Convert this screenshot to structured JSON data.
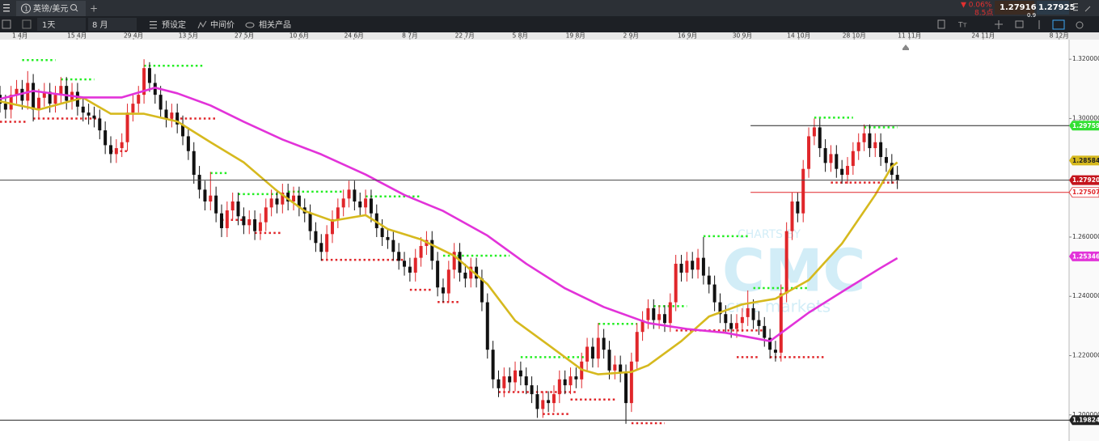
{
  "toolbar": {
    "tab": "英镑/美元",
    "timeframe": "1天",
    "period": "8 月",
    "presets": "预设定",
    "price_mode": "中间价",
    "related": "相关产品",
    "change": "▼ 0.06%",
    "points": "8.5点",
    "bid": "1.27916",
    "ask": "1.27925",
    "spread": "0.9",
    "font_icon": "Tт"
  },
  "watermark": {
    "line1": "CHARTS BY",
    "line2": "CMC",
    "line3": "cmc markets"
  },
  "chart_data": {
    "type": "candlestick",
    "up_color": "#e0262a",
    "down_color": "#111111",
    "grid": false,
    "xlim": [
      0,
      193
    ],
    "xticks": [
      {
        "value": 3.6,
        "label": "1 4月"
      },
      {
        "value": 13.9,
        "label": "15 4月"
      },
      {
        "value": 24.1,
        "label": "29 4月"
      },
      {
        "value": 34,
        "label": "13 5月"
      },
      {
        "value": 44.1,
        "label": "27 5月"
      },
      {
        "value": 54,
        "label": "10 6月"
      },
      {
        "value": 63.9,
        "label": "24 6月"
      },
      {
        "value": 74,
        "label": "8 7月"
      },
      {
        "value": 83.9,
        "label": "22 7月"
      },
      {
        "value": 93.9,
        "label": "5 8月"
      },
      {
        "value": 103.9,
        "label": "19 8月"
      },
      {
        "value": 113.9,
        "label": "2 9月"
      },
      {
        "value": 124.1,
        "label": "16 9月"
      },
      {
        "value": 134,
        "label": "30 9月"
      },
      {
        "value": 144.2,
        "label": "14 10月"
      },
      {
        "value": 154.2,
        "label": "28 10月"
      },
      {
        "value": 164.2,
        "label": "11 11月"
      },
      {
        "value": 177.5,
        "label": "24 11月"
      },
      {
        "value": 191.2,
        "label": "8 12月"
      }
    ],
    "ylim": [
      1.1912,
      1.3266
    ],
    "yticks": [
      {
        "value": 1.32,
        "label": "1.320000"
      },
      {
        "value": 1.3,
        "label": "1.300000"
      },
      {
        "value": 1.26,
        "label": "1.260000"
      },
      {
        "value": 1.24,
        "label": "1.240000"
      },
      {
        "value": 1.22,
        "label": "1.220000"
      },
      {
        "value": 1.2,
        "label": "1.200000"
      }
    ],
    "open": [
      1.308,
      1.305,
      1.303,
      1.308,
      1.31,
      1.306,
      1.312,
      1.303,
      1.307,
      1.309,
      1.305,
      1.308,
      1.311,
      1.306,
      1.309,
      1.304,
      1.302,
      1.301,
      1.3,
      1.296,
      1.291,
      1.288,
      1.29,
      1.292,
      1.302,
      1.305,
      1.308,
      1.317,
      1.312,
      1.308,
      1.303,
      1.3,
      1.302,
      1.298,
      1.294,
      1.289,
      1.281,
      1.276,
      1.272,
      1.274,
      1.268,
      1.263,
      1.269,
      1.272,
      1.267,
      1.264,
      1.266,
      1.262,
      1.265,
      1.27,
      1.273,
      1.271,
      1.275,
      1.272,
      1.274,
      1.27,
      1.268,
      1.262,
      1.258,
      1.255,
      1.261,
      1.266,
      1.27,
      1.273,
      1.276,
      1.272,
      1.27,
      1.273,
      1.268,
      1.263,
      1.26,
      1.259,
      1.255,
      1.252,
      1.25,
      1.248,
      1.253,
      1.257,
      1.259,
      1.252,
      1.243,
      1.241,
      1.249,
      1.255,
      1.248,
      1.246,
      1.25,
      1.246,
      1.238,
      1.222,
      1.212,
      1.209,
      1.213,
      1.211,
      1.215,
      1.213,
      1.21,
      1.207,
      1.202,
      1.205,
      1.204,
      1.207,
      1.212,
      1.21,
      1.213,
      1.212,
      1.218,
      1.223,
      1.219,
      1.226,
      1.222,
      1.215,
      1.217,
      1.214,
      1.204,
      1.218,
      1.228,
      1.232,
      1.236,
      1.232,
      1.234,
      1.231,
      1.238,
      1.251,
      1.248,
      1.252,
      1.249,
      1.253,
      1.247,
      1.244,
      1.238,
      1.234,
      1.231,
      1.229,
      1.231,
      1.233,
      1.236,
      1.232,
      1.23,
      1.226,
      1.222,
      1.221,
      1.241,
      1.262,
      1.272,
      1.268,
      1.283,
      1.294,
      1.297,
      1.29,
      1.285,
      1.288,
      1.283,
      1.281,
      1.284,
      1.289,
      1.292,
      1.295,
      1.29,
      1.292,
      1.287,
      1.285,
      1.281
    ],
    "high": [
      1.311,
      1.308,
      1.311,
      1.313,
      1.313,
      1.316,
      1.315,
      1.31,
      1.312,
      1.312,
      1.311,
      1.314,
      1.314,
      1.312,
      1.312,
      1.307,
      1.305,
      1.304,
      1.303,
      1.299,
      1.294,
      1.293,
      1.295,
      1.305,
      1.308,
      1.311,
      1.32,
      1.319,
      1.315,
      1.311,
      1.306,
      1.305,
      1.305,
      1.301,
      1.297,
      1.292,
      1.284,
      1.279,
      1.282,
      1.277,
      1.271,
      1.272,
      1.275,
      1.275,
      1.27,
      1.269,
      1.269,
      1.268,
      1.273,
      1.276,
      1.276,
      1.278,
      1.278,
      1.277,
      1.277,
      1.273,
      1.271,
      1.265,
      1.261,
      1.264,
      1.269,
      1.273,
      1.276,
      1.279,
      1.279,
      1.275,
      1.276,
      1.276,
      1.271,
      1.266,
      1.263,
      1.262,
      1.258,
      1.255,
      1.253,
      1.256,
      1.26,
      1.262,
      1.262,
      1.255,
      1.246,
      1.252,
      1.258,
      1.258,
      1.251,
      1.253,
      1.253,
      1.249,
      1.241,
      1.225,
      1.215,
      1.216,
      1.216,
      1.218,
      1.218,
      1.216,
      1.213,
      1.21,
      1.208,
      1.208,
      1.21,
      1.215,
      1.215,
      1.216,
      1.216,
      1.221,
      1.226,
      1.226,
      1.231,
      1.229,
      1.225,
      1.22,
      1.22,
      1.217,
      1.221,
      1.231,
      1.235,
      1.239,
      1.239,
      1.237,
      1.237,
      1.241,
      1.254,
      1.254,
      1.255,
      1.255,
      1.256,
      1.26,
      1.25,
      1.247,
      1.241,
      1.237,
      1.234,
      1.234,
      1.236,
      1.242,
      1.239,
      1.235,
      1.233,
      1.229,
      1.225,
      1.244,
      1.265,
      1.275,
      1.275,
      1.286,
      1.297,
      1.3,
      1.3,
      1.293,
      1.291,
      1.291,
      1.286,
      1.287,
      1.292,
      1.295,
      1.298,
      1.298,
      1.295,
      1.295,
      1.29,
      1.288,
      1.284
    ],
    "low": [
      1.302,
      1.3,
      1.3,
      1.305,
      1.303,
      1.303,
      1.299,
      1.3,
      1.304,
      1.302,
      1.302,
      1.305,
      1.303,
      1.303,
      1.301,
      1.299,
      1.298,
      1.297,
      1.293,
      1.288,
      1.285,
      1.285,
      1.287,
      1.289,
      1.299,
      1.302,
      1.305,
      1.309,
      1.305,
      1.3,
      1.297,
      1.297,
      1.295,
      1.291,
      1.286,
      1.278,
      1.273,
      1.269,
      1.269,
      1.265,
      1.26,
      1.26,
      1.266,
      1.264,
      1.261,
      1.261,
      1.259,
      1.259,
      1.262,
      1.267,
      1.268,
      1.268,
      1.269,
      1.269,
      1.267,
      1.265,
      1.259,
      1.255,
      1.252,
      1.252,
      1.258,
      1.263,
      1.267,
      1.27,
      1.269,
      1.267,
      1.267,
      1.265,
      1.26,
      1.257,
      1.256,
      1.252,
      1.249,
      1.247,
      1.245,
      1.245,
      1.25,
      1.254,
      1.249,
      1.24,
      1.238,
      1.238,
      1.246,
      1.245,
      1.243,
      1.243,
      1.243,
      1.235,
      1.219,
      1.209,
      1.206,
      1.206,
      1.208,
      1.208,
      1.21,
      1.207,
      1.204,
      1.199,
      1.199,
      1.201,
      1.201,
      1.204,
      1.207,
      1.207,
      1.209,
      1.209,
      1.215,
      1.216,
      1.216,
      1.219,
      1.212,
      1.212,
      1.211,
      1.197,
      1.201,
      1.215,
      1.225,
      1.229,
      1.229,
      1.229,
      1.228,
      1.228,
      1.235,
      1.245,
      1.245,
      1.246,
      1.246,
      1.244,
      1.241,
      1.235,
      1.231,
      1.228,
      1.226,
      1.226,
      1.228,
      1.23,
      1.229,
      1.227,
      1.223,
      1.219,
      1.218,
      1.218,
      1.238,
      1.259,
      1.265,
      1.265,
      1.28,
      1.291,
      1.287,
      1.282,
      1.282,
      1.28,
      1.278,
      1.278,
      1.281,
      1.286,
      1.289,
      1.287,
      1.287,
      1.284,
      1.282,
      1.278,
      1.2762
    ],
    "close": [
      1.305,
      1.303,
      1.308,
      1.31,
      1.306,
      1.312,
      1.303,
      1.307,
      1.309,
      1.305,
      1.308,
      1.311,
      1.306,
      1.309,
      1.304,
      1.302,
      1.301,
      1.3,
      1.296,
      1.291,
      1.288,
      1.29,
      1.292,
      1.302,
      1.305,
      1.308,
      1.317,
      1.312,
      1.308,
      1.303,
      1.3,
      1.302,
      1.298,
      1.294,
      1.289,
      1.281,
      1.276,
      1.272,
      1.274,
      1.268,
      1.263,
      1.269,
      1.272,
      1.267,
      1.264,
      1.266,
      1.262,
      1.265,
      1.27,
      1.273,
      1.271,
      1.275,
      1.272,
      1.274,
      1.27,
      1.268,
      1.262,
      1.258,
      1.255,
      1.261,
      1.266,
      1.27,
      1.273,
      1.276,
      1.272,
      1.27,
      1.273,
      1.268,
      1.263,
      1.26,
      1.259,
      1.255,
      1.252,
      1.25,
      1.248,
      1.253,
      1.257,
      1.259,
      1.252,
      1.243,
      1.241,
      1.249,
      1.255,
      1.248,
      1.246,
      1.25,
      1.246,
      1.238,
      1.222,
      1.212,
      1.209,
      1.213,
      1.211,
      1.215,
      1.213,
      1.21,
      1.207,
      1.202,
      1.205,
      1.204,
      1.207,
      1.212,
      1.21,
      1.213,
      1.212,
      1.218,
      1.223,
      1.219,
      1.226,
      1.222,
      1.215,
      1.217,
      1.214,
      1.204,
      1.218,
      1.228,
      1.232,
      1.236,
      1.232,
      1.234,
      1.231,
      1.238,
      1.251,
      1.248,
      1.252,
      1.249,
      1.253,
      1.247,
      1.244,
      1.238,
      1.234,
      1.231,
      1.229,
      1.231,
      1.233,
      1.236,
      1.232,
      1.23,
      1.226,
      1.222,
      1.221,
      1.241,
      1.262,
      1.272,
      1.268,
      1.283,
      1.294,
      1.297,
      1.29,
      1.285,
      1.288,
      1.283,
      1.281,
      1.284,
      1.289,
      1.292,
      1.295,
      1.29,
      1.292,
      1.287,
      1.285,
      1.281,
      1.2792
    ],
    "series": [
      {
        "color": "#d6b91e",
        "x": [
          0,
          7,
          15,
          20,
          26,
          32,
          38,
          44,
          50,
          55,
          60,
          66,
          70,
          76,
          82,
          88,
          93,
          99,
          105,
          108,
          114,
          117,
          123,
          128,
          134,
          140,
          146,
          152,
          158,
          161,
          162
        ],
        "values": [
          1.3058,
          1.303,
          1.307,
          1.3016,
          1.3016,
          1.299,
          1.292,
          1.2852,
          1.2756,
          1.2688,
          1.2655,
          1.2674,
          1.2627,
          1.2592,
          1.2537,
          1.2441,
          1.2318,
          1.2236,
          1.2153,
          1.2137,
          1.2145,
          1.2167,
          1.2249,
          1.2332,
          1.2373,
          1.2392,
          1.2455,
          1.2578,
          1.2742,
          1.2838,
          1.2852
        ]
      },
      {
        "color": "#e233d9",
        "x": [
          0,
          6,
          15,
          22,
          28,
          32,
          38,
          44,
          51,
          58,
          66,
          73,
          80,
          88,
          95,
          102,
          109,
          117,
          124,
          131,
          139,
          142,
          146,
          153,
          159,
          162
        ],
        "values": [
          1.3066,
          1.3093,
          1.3071,
          1.3071,
          1.3104,
          1.3085,
          1.3044,
          1.2989,
          1.2929,
          1.2879,
          1.2811,
          1.2742,
          1.2688,
          1.2605,
          1.251,
          1.2427,
          1.2364,
          1.231,
          1.229,
          1.2277,
          1.2249,
          1.229,
          1.2345,
          1.2427,
          1.2496,
          1.2529
        ]
      }
    ],
    "levels": [
      {
        "x": [
          4,
          10
        ],
        "value": 1.3197,
        "color": "#22ee22"
      },
      {
        "x": [
          11,
          17
        ],
        "value": 1.3132,
        "color": "#22ee22"
      },
      {
        "x": [
          26,
          37
        ],
        "value": 1.3178,
        "color": "#22ee22"
      },
      {
        "x": [
          38,
          41
        ],
        "value": 1.2816,
        "color": "#22ee22"
      },
      {
        "x": [
          43,
          51
        ],
        "value": 1.2745,
        "color": "#22ee22"
      },
      {
        "x": [
          52,
          62
        ],
        "value": 1.2753,
        "color": "#22ee22"
      },
      {
        "x": [
          66,
          76
        ],
        "value": 1.2737,
        "color": "#22ee22"
      },
      {
        "x": [
          80,
          92
        ],
        "value": 1.2537,
        "color": "#22ee22"
      },
      {
        "x": [
          94,
          107
        ],
        "value": 1.2195,
        "color": "#22ee22"
      },
      {
        "x": [
          108,
          115
        ],
        "value": 1.2307,
        "color": "#22ee22"
      },
      {
        "x": [
          118,
          124
        ],
        "value": 1.2367,
        "color": "#22ee22"
      },
      {
        "x": [
          127,
          135
        ],
        "value": 1.2603,
        "color": "#22ee22"
      },
      {
        "x": [
          136,
          146
        ],
        "value": 1.2428,
        "color": "#22ee22"
      },
      {
        "x": [
          147,
          154
        ],
        "value": 1.3003,
        "color": "#22ee22"
      },
      {
        "x": [
          156,
          162
        ],
        "value": 1.297,
        "color": "#22ee22"
      },
      {
        "x": [
          0,
          5
        ],
        "value": 1.2989,
        "color": "#e0262a"
      },
      {
        "x": [
          6,
          18
        ],
        "value": 1.3,
        "color": "#e0262a"
      },
      {
        "x": [
          20,
          23
        ],
        "value": 1.289,
        "color": "#e0262a"
      },
      {
        "x": [
          30,
          39
        ],
        "value": 1.3,
        "color": "#e0262a"
      },
      {
        "x": [
          40,
          44
        ],
        "value": 1.2658,
        "color": "#e0262a"
      },
      {
        "x": [
          46,
          51
        ],
        "value": 1.2614,
        "color": "#e0262a"
      },
      {
        "x": [
          58,
          73
        ],
        "value": 1.2523,
        "color": "#e0262a"
      },
      {
        "x": [
          74,
          78
        ],
        "value": 1.2422,
        "color": "#e0262a"
      },
      {
        "x": [
          79,
          83
        ],
        "value": 1.2381,
        "color": "#e0262a"
      },
      {
        "x": [
          90,
          104
        ],
        "value": 1.2077,
        "color": "#e0262a"
      },
      {
        "x": [
          98,
          103
        ],
        "value": 1.2003,
        "color": "#e0262a"
      },
      {
        "x": [
          103,
          111
        ],
        "value": 1.2052,
        "color": "#e0262a"
      },
      {
        "x": [
          114,
          120
        ],
        "value": 1.1972,
        "color": "#e0262a"
      },
      {
        "x": [
          122,
          138
        ],
        "value": 1.2285,
        "color": "#e0262a"
      },
      {
        "x": [
          133,
          137
        ],
        "value": 1.2195,
        "color": "#e0262a"
      },
      {
        "x": [
          139,
          149
        ],
        "value": 1.2195,
        "color": "#e0262a"
      },
      {
        "x": [
          150,
          162
        ],
        "value": 1.2784,
        "color": "#e0262a"
      }
    ],
    "price_markers": [
      {
        "value": 1.29759,
        "color": "#33e033",
        "text_color": "#ffffff",
        "line": "partial",
        "line_color": "#222222",
        "line_from": 135.5
      },
      {
        "value": 1.28584,
        "color": "#d6b91e",
        "text_color": "#222222",
        "line": "none"
      },
      {
        "value": 1.279205,
        "color": "#c4141c",
        "text_color": "#ffffff",
        "line": "full",
        "line_color": "#444444"
      },
      {
        "value": 1.275077,
        "color": "#ffffff",
        "text_color": "#e0262a",
        "line": "partial",
        "line_color": "#e0262a",
        "line_from": 135.5
      },
      {
        "value": 1.25346,
        "color": "#e233d9",
        "text_color": "#ffffff",
        "line": "none"
      },
      {
        "value": 1.198242,
        "color": "#222222",
        "text_color": "#ffffff",
        "line": "full",
        "line_color": "#222222"
      }
    ]
  }
}
